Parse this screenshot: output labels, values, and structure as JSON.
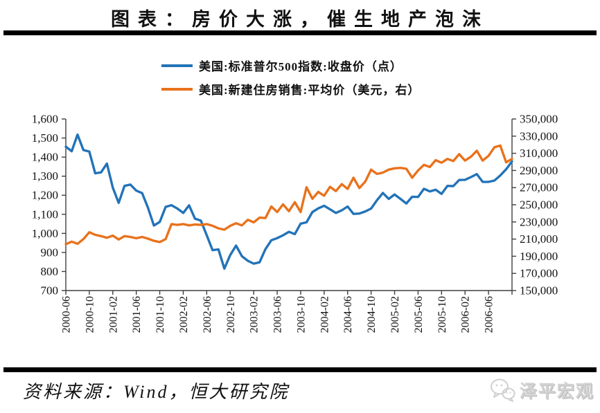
{
  "page": {
    "title": "图表：房价大涨，催生地产泡沫"
  },
  "legend": [
    {
      "label": "美国:标准普尔500指数:收盘价（点）",
      "color": "#2273B8"
    },
    {
      "label": "美国:新建住房销售:平均价（美元，右）",
      "color": "#E8721C"
    }
  ],
  "footer": {
    "source": "资料来源：Wind，恒大研究院",
    "logo_text": "泽平宏观",
    "logo_icon": "wechat-chat-bubbles",
    "logo_color": "#d2d2d2"
  },
  "colors": {
    "axis": "#3f3f3f",
    "title": "#111111",
    "sp500_line": "#2273B8",
    "home_price_line": "#E8721C"
  },
  "chart_data": {
    "type": "line",
    "title": "图表：房价大涨，催生地产泡沫",
    "grid": false,
    "legend_position": "top",
    "x": [
      "2000-06",
      "2000-07",
      "2000-08",
      "2000-09",
      "2000-10",
      "2000-11",
      "2000-12",
      "2001-01",
      "2001-02",
      "2001-03",
      "2001-04",
      "2001-05",
      "2001-06",
      "2001-07",
      "2001-08",
      "2001-09",
      "2001-10",
      "2001-11",
      "2001-12",
      "2002-01",
      "2002-02",
      "2002-03",
      "2002-04",
      "2002-05",
      "2002-06",
      "2002-07",
      "2002-08",
      "2002-09",
      "2002-10",
      "2002-11",
      "2002-12",
      "2003-01",
      "2003-02",
      "2003-03",
      "2003-04",
      "2003-05",
      "2003-06",
      "2003-07",
      "2003-08",
      "2003-09",
      "2003-10",
      "2003-11",
      "2003-12",
      "2004-01",
      "2004-02",
      "2004-03",
      "2004-04",
      "2004-05",
      "2004-06",
      "2004-07",
      "2004-08",
      "2004-09",
      "2004-10",
      "2004-11",
      "2004-12",
      "2005-01",
      "2005-02",
      "2005-03",
      "2005-04",
      "2005-05",
      "2005-06",
      "2005-07",
      "2005-08",
      "2005-09",
      "2005-10",
      "2005-11",
      "2005-12",
      "2006-01",
      "2006-02",
      "2006-03",
      "2006-04",
      "2006-05",
      "2006-06",
      "2006-07",
      "2006-08",
      "2006-09",
      "2006-10"
    ],
    "x_tick_labels": [
      "2000-06",
      "2000-10",
      "2001-02",
      "2001-06",
      "2001-10",
      "2002-02",
      "2002-06",
      "2002-10",
      "2003-02",
      "2003-06",
      "2003-10",
      "2004-02",
      "2004-06",
      "2004-10",
      "2005-02",
      "2005-06",
      "2005-10",
      "2006-02",
      "2006-06"
    ],
    "x_tick_every": 4,
    "left_axis": {
      "min": 700,
      "max": 1600,
      "step": 100,
      "tick_labels": [
        "1,600",
        "1,500",
        "1,400",
        "1,300",
        "1,200",
        "1,100",
        "1,000",
        "900",
        "800",
        "700"
      ]
    },
    "right_axis": {
      "min": 150000,
      "max": 350000,
      "step": 20000,
      "tick_labels": [
        "350,000",
        "330,000",
        "310,000",
        "290,000",
        "270,000",
        "250,000",
        "230,000",
        "210,000",
        "190,000",
        "170,000",
        "150,000"
      ]
    },
    "series": [
      {
        "name": "美国:标准普尔500指数:收盘价（点）",
        "axis": "left",
        "color": "#2273B8",
        "values": [
          1455,
          1431,
          1518,
          1437,
          1429,
          1315,
          1320,
          1366,
          1240,
          1160,
          1249,
          1256,
          1224,
          1211,
          1134,
          1041,
          1060,
          1139,
          1148,
          1130,
          1107,
          1147,
          1077,
          1067,
          990,
          912,
          916,
          815,
          886,
          936,
          880,
          856,
          841,
          848,
          917,
          964,
          975,
          990,
          1008,
          996,
          1051,
          1058,
          1112,
          1131,
          1145,
          1126,
          1107,
          1121,
          1141,
          1102,
          1104,
          1115,
          1130,
          1174,
          1212,
          1181,
          1204,
          1181,
          1157,
          1192,
          1191,
          1234,
          1220,
          1229,
          1207,
          1249,
          1248,
          1280,
          1281,
          1295,
          1311,
          1270,
          1270,
          1277,
          1304,
          1336,
          1378
        ]
      },
      {
        "name": "美国:新建住房销售:平均价（美元，右）",
        "axis": "right",
        "color": "#E8721C",
        "values": [
          204000,
          207000,
          204500,
          210000,
          218000,
          215000,
          213500,
          211500,
          214000,
          209500,
          213500,
          212500,
          211000,
          212500,
          210500,
          208000,
          206500,
          210000,
          227500,
          226500,
          227500,
          226000,
          227000,
          226500,
          227500,
          225500,
          222500,
          221000,
          225500,
          228500,
          226000,
          232500,
          229500,
          235000,
          234500,
          248000,
          241500,
          250500,
          242500,
          253000,
          241500,
          270500,
          257000,
          265000,
          260500,
          271000,
          266000,
          274000,
          268500,
          281500,
          269500,
          277000,
          291000,
          286000,
          287500,
          291000,
          292500,
          293000,
          292000,
          281500,
          290000,
          296500,
          294000,
          302000,
          299000,
          303500,
          301000,
          309000,
          301500,
          306000,
          313000,
          301500,
          307000,
          317000,
          319000,
          299500,
          303500
        ]
      }
    ]
  }
}
